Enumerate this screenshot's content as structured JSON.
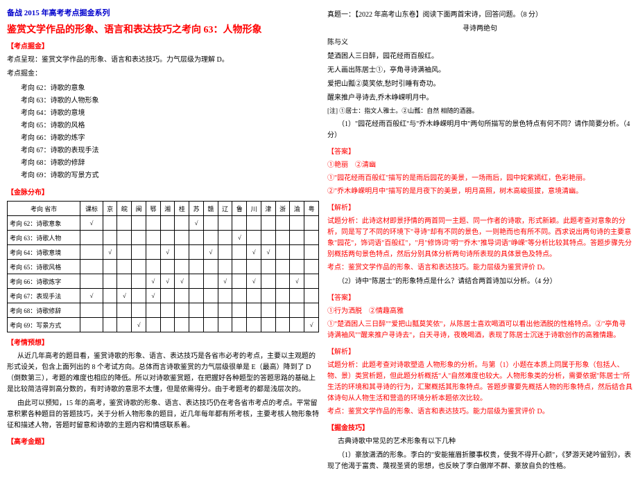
{
  "colors": {
    "blue": "#0000cc",
    "red": "#ff0000",
    "black": "#000000",
    "border": "#000000",
    "watermark": "#dddddd"
  },
  "left": {
    "header": "备战 2015 年高考考点掘金系列",
    "title": "鉴赏文学作品的形象、语言和表达技巧之考向 63：人物形象",
    "kaoDianJueJin": "【考点掘金】",
    "kaoDianIntro": "考点呈现：鉴赏文学作品的形象、语言和表达技巧。力气层级为理解 D。",
    "kaoDianXuDian": "考点掘金：",
    "items": [
      "考向 62：诗歌的意象",
      "考向 63：诗歌的人物形象",
      "考向 64：诗歌的意境",
      "考向 65：诗歌的风格",
      "考向 66：诗歌的炼字",
      "考向 67：诗歌的表现手法",
      "考向 68：诗歌的修辞",
      "考向 69：诗歌的写景方式"
    ],
    "jinMaiFenBu": "【金脉分布】",
    "table": {
      "headers": [
        "考向   省市",
        "课标",
        "京",
        "皖",
        "闽",
        "鄂",
        "湘",
        "桂",
        "苏",
        "赣",
        "辽",
        "鲁",
        "川",
        "津",
        "浙",
        "渝",
        "粤"
      ],
      "rows": [
        {
          "label": "考向 62：诗歌意象",
          "checks": [
            "√",
            "",
            "",
            "",
            "",
            "",
            "",
            "√",
            "",
            "",
            "",
            "",
            "",
            "",
            "",
            ""
          ]
        },
        {
          "label": "考向 63：诗歌人物",
          "checks": [
            "",
            "",
            "",
            "",
            "",
            "",
            "",
            "",
            "",
            "",
            "√",
            "",
            "",
            "",
            "",
            ""
          ]
        },
        {
          "label": "考向 64：诗歌意境",
          "checks": [
            "",
            "√",
            "",
            "",
            "",
            "√",
            "",
            "",
            "√",
            "",
            "",
            "√",
            "√",
            "",
            "",
            ""
          ]
        },
        {
          "label": "考向 65：诗歌风格",
          "checks": [
            "",
            "",
            "",
            "",
            "",
            "",
            "",
            "",
            "",
            "",
            "",
            "",
            "",
            "",
            "",
            ""
          ]
        },
        {
          "label": "考向 66：诗歌炼字",
          "checks": [
            "",
            "",
            "",
            "",
            "√",
            "√",
            "√",
            "",
            "",
            "√",
            "",
            "√",
            "",
            "",
            "√",
            ""
          ]
        },
        {
          "label": "考向 67：表现手法",
          "checks": [
            "√",
            "",
            "√",
            "",
            "√",
            "",
            "",
            "",
            "",
            "",
            "",
            "",
            "",
            "",
            "",
            ""
          ]
        },
        {
          "label": "考向 68：诗歌修辞",
          "checks": [
            "",
            "",
            "",
            "",
            "",
            "",
            "",
            "",
            "",
            "",
            "",
            "",
            "",
            "",
            "",
            ""
          ]
        },
        {
          "label": "考向 69：写景方式",
          "checks": [
            "",
            "",
            "",
            "√",
            "",
            "",
            "",
            "",
            "",
            "",
            "",
            "",
            "",
            "",
            "",
            "√"
          ]
        }
      ]
    },
    "kaoQingYuCe": "【考情预想】",
    "para1": "从近几年高考的题目看，鉴赏诗歌的形象、语言、表达技巧是各省市必考的考点，主要以主观题的形式设关，包含上面列出的 8 个考试方向。总体而言诗歌鉴赏的力气层级很单是 E（最高）降到了 D（倒数第三），考题的难度也相应的降低。所以对诗歌鉴赏题，在把握好各种题型的答题思路的基础上是比较简洁得到高分数的，有时诗歌的意思不太懂，但是依需得分。由于考题考的都是浅层次的。",
    "para2": "由此可以预知，15 年的高考，鉴赏诗歌的形象、语言、表达技巧仍在考各省市考点的考点。平常留意积累各种题目的答题技巧，关于分析人物形象的题目，近几年每年都有所考核，主要考核人物形象特征和描述人物，答题时留意和诗歌的主题内容和情感联系着。",
    "gaoKaoJinTi": "【高考金题】"
  },
  "right": {
    "zhenti": "真题一：【2022 年高考山东卷】阅读下面两首宋诗，回答问题。（8 分）",
    "poemTitle": "寻诗两绝句",
    "poemAuthor": "陈与义",
    "line1": "楚酒困人三日醉，园花经雨百般红。",
    "line2": "无人画出陈居士①，亭角寻诗满袖风。",
    "line3": "爱把山瓢②莫笑侬,愁时引睡有奇功。",
    "line4": "醒来推户寻诗去,乔木峥嵘明月中。",
    "note": "[注] ①居士：指文人雅士。②山瓢：自然  相随的酒器。",
    "q1": "（1）\"园花经雨百般红\"与\"乔木峥嵘明月中\"两句所描写的景色特点有何不同？请作简要分析。（4 分）",
    "daAn1": "【答案】",
    "ans1_1": "①艳丽　②清幽",
    "ans1_2": "①\"园花经雨百般红\"描写的是雨后园花的美景，一场雨后，园中姹紫嫣红，色彩艳丽。",
    "ans1_3": "②\"乔木峥嵘明月中\"描写的是月夜下的美景，明月高照，树木高峻挺拔，意境清幽。",
    "jieXi1": "【解析】",
    "jiexi1_text": "试题分析：此诗这材即景抒情的两首同一主题、同一作者的诗歌，形式新颖。此题考查对意象的分析，同是写了不同的环境下\"寻诗\"却有不同的景色，一则艳而也有所不同。西求说出两句诗的主要意象\"园花\"，饰词语\"百般红\"，\"月\"修饰词\"明\"\"乔木\"推导词语\"峥嵘\"等分析比较其特点。答题步骤先分别概括两句景色特点，然后分别具体分析两句诗所表现的具体景色及特点。",
    "kaoDian1": "考点：鉴赏文学作品的形象、语言和表达技巧。能力层级为鉴赏评价 D。",
    "q2": "（2）诗中\"陈居士\"的形象特点是什么？请结合两首诗加以分析。（4 分）",
    "daAn2": "【答案】",
    "ans2_1": "①行为洒脱　②情趣高雅",
    "ans2_2": "①\"楚酒困人三日醉\"\"爱把山瓢莫笑侬\"，从陈居士喜欢喝酒可以看出他洒脱的性格特点。②\"亭角寻诗满袖风\"\"醒来推户寻诗去\"，白天寻诗，夜晚喝酒，表现了陈居士沉迷于诗歌创作的高雅情趣。",
    "jieXi2": "【解析】",
    "jiexi2_text": "试题分析：此题考查对诗歌塑造    人物形象的分析。与第（1）小题在本质上同属于形象（包括人、物、景）类赏析题，但此题分析概括\"人\"自然难度也较大。人物形象类的分析，需要依据\"陈居士\"所生活的环境和其寻诗的行为，汇聚概括其形象特点。答题步骤要先概括人物的形象特点，然后结合具体诗句从人物生活和营造的环境分析本题依次比较。",
    "kaoDian2": "考点：鉴赏文学作品的形象、语言和表达技巧。能力层级为鉴赏评价 D。",
    "jueJinJiQiao": "【掘金技巧】",
    "jiqiao1": "古典诗歌中常见的艺术形象有以下几种",
    "jiqiao2": "（1）豪放潇洒的形象。李白的\"安能摧眉折腰事权贵，使我不得开心颜\"，《梦游天姥吟留别》，表现了他渴于富贵、蔑视圣贤的思想，也反映了李白傲岸不群、豪放自负的性格。"
  }
}
